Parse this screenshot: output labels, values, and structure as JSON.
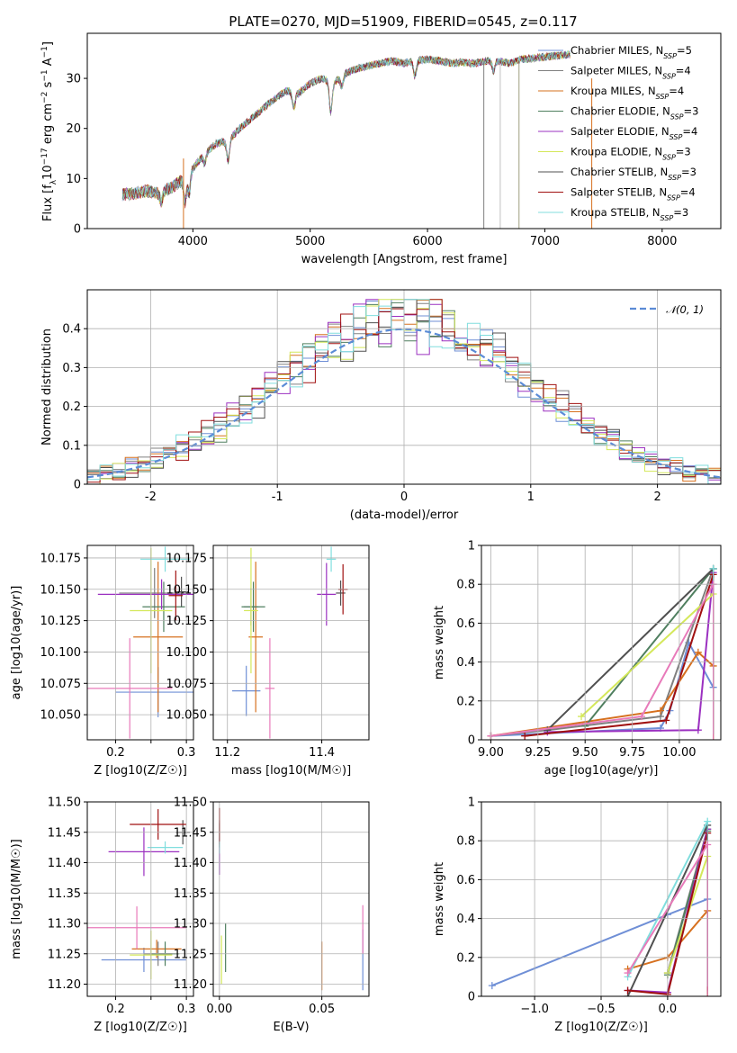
{
  "figure": {
    "title": "PLATE=0270, MJD=51909, FIBERID=0545, z=0.117",
    "colors": {
      "Chabrier MILES": "#6f8fd6",
      "Salpeter MILES": "#808080",
      "Kroupa MILES": "#d6701f",
      "Chabrier ELODIE": "#4f7f5f",
      "Salpeter ELODIE": "#9b30c0",
      "Kroupa ELODIE": "#d4e85a",
      "Chabrier STELIB": "#505050",
      "Salpeter STELIB": "#a01010",
      "Kroupa STELIB": "#80dede"
    }
  },
  "chart_data": [
    {
      "id": "spectrum",
      "type": "line",
      "xlabel": "wavelength [Angstrom, rest frame]",
      "ylabel": "Flux [fλ10⁻¹⁷ erg cm⁻² s⁻¹ A⁻¹]",
      "xlim": [
        3100,
        8500
      ],
      "ylim": [
        0,
        39
      ],
      "xticks": [
        4000,
        5000,
        6000,
        7000,
        8000
      ],
      "yticks": [
        0,
        10,
        20,
        30
      ],
      "grid": false,
      "legend_position": "right",
      "series": [
        {
          "name": "Chabrier MILES, N_SSP=5",
          "color": "#6f8fd6"
        },
        {
          "name": "Salpeter MILES, N_SSP=4",
          "color": "#808080"
        },
        {
          "name": "Kroupa MILES, N_SSP=4",
          "color": "#d6701f"
        },
        {
          "name": "Chabrier ELODIE, N_SSP=3",
          "color": "#4f7f5f"
        },
        {
          "name": "Salpeter ELODIE, N_SSP=4",
          "color": "#9b30c0"
        },
        {
          "name": "Kroupa ELODIE, N_SSP=3",
          "color": "#d4e85a"
        },
        {
          "name": "Chabrier STELIB, N_SSP=3",
          "color": "#505050"
        },
        {
          "name": "Salpeter STELIB, N_SSP=4",
          "color": "#a01010"
        },
        {
          "name": "Kroupa STELIB, N_SSP=3",
          "color": "#80dede"
        }
      ],
      "envelope": [
        [
          3400,
          6.8
        ],
        [
          3500,
          7.0
        ],
        [
          3600,
          7.5
        ],
        [
          3700,
          7.2
        ],
        [
          3800,
          8.0
        ],
        [
          3900,
          9.5
        ],
        [
          4000,
          12.0
        ],
        [
          4100,
          15.0
        ],
        [
          4200,
          17.0
        ],
        [
          4300,
          17.5
        ],
        [
          4400,
          20.0
        ],
        [
          4500,
          22.0
        ],
        [
          4600,
          24.0
        ],
        [
          4700,
          26.0
        ],
        [
          4800,
          27.5
        ],
        [
          4900,
          27.0
        ],
        [
          5000,
          29.0
        ],
        [
          5100,
          30.0
        ],
        [
          5200,
          29.0
        ],
        [
          5300,
          31.0
        ],
        [
          5400,
          32.0
        ],
        [
          5500,
          32.5
        ],
        [
          5600,
          33.0
        ],
        [
          5700,
          33.5
        ],
        [
          5800,
          33.0
        ],
        [
          5900,
          33.5
        ],
        [
          6000,
          33.8
        ],
        [
          6100,
          33.5
        ],
        [
          6200,
          33.0
        ],
        [
          6300,
          33.2
        ],
        [
          6400,
          33.0
        ],
        [
          6500,
          33.5
        ],
        [
          6600,
          33.5
        ],
        [
          6700,
          33.0
        ],
        [
          6800,
          33.8
        ],
        [
          6900,
          34.0
        ],
        [
          7000,
          34.3
        ],
        [
          7100,
          34.5
        ],
        [
          7200,
          34.8
        ]
      ],
      "lines": [
        {
          "x": 3920,
          "y0": 0,
          "y1": 14,
          "color": "#d6701f"
        },
        {
          "x": 6480,
          "y0": 0,
          "y1": 33,
          "color": "#808080"
        },
        {
          "x": 6620,
          "y0": 0,
          "y1": 33,
          "color": "#c0c0c0"
        },
        {
          "x": 6780,
          "y0": 0,
          "y1": 33,
          "color": "#a0a080"
        },
        {
          "x": 7400,
          "y0": 0,
          "y1": 30,
          "color": "#d6701f"
        }
      ]
    },
    {
      "id": "residuals",
      "type": "line",
      "xlabel": "(data-model)/error",
      "ylabel": "Normed distribution",
      "xlim": [
        -2.5,
        2.5
      ],
      "ylim": [
        0,
        0.5
      ],
      "xticks": [
        -2,
        -1,
        0,
        1,
        2
      ],
      "yticks": [
        0.0,
        0.1,
        0.2,
        0.3,
        0.4
      ],
      "grid": true,
      "legend_position": "top-right",
      "legend": "𝒩(0, 1)",
      "histogram_bin_width": 0.1,
      "series_colors": [
        "#6f8fd6",
        "#808080",
        "#d6701f",
        "#4f7f5f",
        "#9b30c0",
        "#d4e85a",
        "#505050",
        "#a01010",
        "#80dede"
      ]
    },
    {
      "id": "age_vs_Z",
      "type": "scatter",
      "xlabel": "Z [log10(Z/Z☉)]",
      "ylabel": "age [log10(age/yr)]",
      "xlim": [
        0.16,
        0.31
      ],
      "ylim": [
        10.03,
        10.185
      ],
      "xticks": [
        0.2,
        0.25,
        0.3
      ],
      "xticklabels": [
        "0.2",
        "",
        "0.3"
      ],
      "yticks": [
        10.05,
        10.075,
        10.1,
        10.125,
        10.15,
        10.175
      ],
      "yticklabels": [
        "10.050",
        "10.075",
        "10.100",
        "10.125",
        "10.150",
        "10.175"
      ],
      "grid": true,
      "points": [
        {
          "x": 0.26,
          "y": 10.068,
          "xerr": 0.06,
          "yerr": 0.02,
          "color": "#6f8fd6"
        },
        {
          "x": 0.255,
          "y": 10.147,
          "xerr": 0.05,
          "yerr": 0.02,
          "color": "#808080"
        },
        {
          "x": 0.26,
          "y": 10.112,
          "xerr": 0.035,
          "yerr": 0.06,
          "color": "#d6701f"
        },
        {
          "x": 0.268,
          "y": 10.136,
          "xerr": 0.03,
          "yerr": 0.02,
          "color": "#4f7f5f"
        },
        {
          "x": 0.265,
          "y": 10.146,
          "xerr": 0.09,
          "yerr": 0.012,
          "color": "#9b30c0"
        },
        {
          "x": 0.25,
          "y": 10.133,
          "xerr": 0.03,
          "yerr": 0.05,
          "color": "#d4e85a"
        },
        {
          "x": 0.293,
          "y": 10.148,
          "xerr": 0.01,
          "yerr": 0.012,
          "color": "#505050"
        },
        {
          "x": 0.285,
          "y": 10.145,
          "xerr": 0.01,
          "yerr": 0.02,
          "color": "#a01010"
        },
        {
          "x": 0.27,
          "y": 10.174,
          "xerr": 0.035,
          "yerr": 0.01,
          "color": "#80dede"
        },
        {
          "x": 0.22,
          "y": 10.071,
          "xerr": 0.06,
          "yerr": 0.04,
          "color": "#e87aba"
        }
      ]
    },
    {
      "id": "age_vs_mass",
      "type": "scatter",
      "xlabel": "mass [log10(M/M☉)]",
      "ylabel": "",
      "xlim": [
        11.17,
        11.5
      ],
      "ylim": [
        10.03,
        10.185
      ],
      "xticks": [
        11.2,
        11.4
      ],
      "yticks": [
        10.05,
        10.075,
        10.1,
        10.125,
        10.15,
        10.175
      ],
      "yticklabels": [
        "10.050",
        "10.075",
        "10.100",
        "10.125",
        "10.150",
        "10.175"
      ],
      "grid": true,
      "points": [
        {
          "x": 11.24,
          "y": 10.069,
          "xerr": 0.03,
          "yerr": 0.02,
          "color": "#6f8fd6"
        },
        {
          "x": 11.25,
          "y": 10.136,
          "xerr": 0.015,
          "yerr": 0.015,
          "color": "#808080"
        },
        {
          "x": 11.26,
          "y": 10.112,
          "xerr": 0.015,
          "yerr": 0.06,
          "color": "#d6701f"
        },
        {
          "x": 11.255,
          "y": 10.136,
          "xerr": 0.025,
          "yerr": 0.02,
          "color": "#4f7f5f"
        },
        {
          "x": 11.41,
          "y": 10.146,
          "xerr": 0.02,
          "yerr": 0.025,
          "color": "#9b30c0"
        },
        {
          "x": 11.25,
          "y": 10.133,
          "xerr": 0.015,
          "yerr": 0.05,
          "color": "#d4e85a"
        },
        {
          "x": 11.44,
          "y": 10.147,
          "xerr": 0.01,
          "yerr": 0.01,
          "color": "#505050"
        },
        {
          "x": 11.445,
          "y": 10.15,
          "xerr": 0.01,
          "yerr": 0.02,
          "color": "#a01010"
        },
        {
          "x": 11.42,
          "y": 10.174,
          "xerr": 0.01,
          "yerr": 0.01,
          "color": "#80dede"
        },
        {
          "x": 11.29,
          "y": 10.071,
          "xerr": 0.01,
          "yerr": 0.04,
          "color": "#e87aba"
        }
      ]
    },
    {
      "id": "mass_weight_vs_age",
      "type": "line",
      "xlabel": "age [log10(age/yr)]",
      "ylabel": "mass weight",
      "xlim": [
        8.95,
        10.22
      ],
      "ylim": [
        0,
        1.0
      ],
      "xticks": [
        9.0,
        9.25,
        9.5,
        9.75,
        10.0
      ],
      "xticklabels": [
        "9.00",
        "9.25",
        "9.50",
        "9.75",
        "10.00"
      ],
      "yticks": [
        0.0,
        0.2,
        0.4,
        0.6,
        0.8,
        1.0
      ],
      "grid": true,
      "series": [
        {
          "color": "#6f8fd6",
          "x": [
            9.0,
            9.9,
            9.95,
            10.05,
            10.18
          ],
          "y": [
            0.02,
            0.06,
            0.15,
            0.5,
            0.27
          ]
        },
        {
          "color": "#808080",
          "x": [
            9.0,
            9.3,
            9.9,
            10.18
          ],
          "y": [
            0.02,
            0.05,
            0.12,
            0.88
          ]
        },
        {
          "color": "#d6701f",
          "x": [
            9.0,
            9.9,
            10.1,
            10.18
          ],
          "y": [
            0.02,
            0.15,
            0.45,
            0.38
          ]
        },
        {
          "color": "#4f7f5f",
          "x": [
            9.5,
            10.18
          ],
          "y": [
            0.07,
            0.88
          ]
        },
        {
          "color": "#9b30c0",
          "x": [
            9.3,
            10.1,
            10.18
          ],
          "y": [
            0.04,
            0.05,
            0.86
          ]
        },
        {
          "color": "#d4e85a",
          "x": [
            9.48,
            10.18
          ],
          "y": [
            0.12,
            0.75
          ]
        },
        {
          "color": "#505050",
          "x": [
            9.3,
            10.18
          ],
          "y": [
            0.05,
            0.88
          ]
        },
        {
          "color": "#a01010",
          "x": [
            9.18,
            9.93,
            10.18
          ],
          "y": [
            0.02,
            0.1,
            0.85
          ]
        },
        {
          "color": "#80dede",
          "x": [
            10.18
          ],
          "y": [
            0.88
          ]
        },
        {
          "color": "#e87aba",
          "x": [
            9.0,
            9.8,
            10.18
          ],
          "y": [
            0.02,
            0.12,
            0.8
          ]
        }
      ]
    },
    {
      "id": "mass_vs_Z",
      "type": "scatter",
      "xlabel": "Z [log10(Z/Z☉)]",
      "ylabel": "mass [log10(M/M☉)]",
      "xlim": [
        0.16,
        0.31
      ],
      "ylim": [
        11.18,
        11.5
      ],
      "xticks": [
        0.2,
        0.25,
        0.3
      ],
      "xticklabels": [
        "0.2",
        "",
        "0.3"
      ],
      "yticks": [
        11.2,
        11.25,
        11.3,
        11.35,
        11.4,
        11.45,
        11.5
      ],
      "yticklabels": [
        "11.20",
        "11.25",
        "11.30",
        "11.35",
        "11.40",
        "11.45",
        "11.50"
      ],
      "grid": true,
      "points": [
        {
          "x": 0.24,
          "y": 11.24,
          "xerr": 0.06,
          "yerr": 0.02,
          "color": "#6f8fd6"
        },
        {
          "x": 0.26,
          "y": 11.25,
          "xerr": 0.02,
          "yerr": 0.02,
          "color": "#808080"
        },
        {
          "x": 0.258,
          "y": 11.258,
          "xerr": 0.035,
          "yerr": 0.015,
          "color": "#d6701f"
        },
        {
          "x": 0.27,
          "y": 11.25,
          "xerr": 0.02,
          "yerr": 0.02,
          "color": "#4f7f5f"
        },
        {
          "x": 0.24,
          "y": 11.418,
          "xerr": 0.05,
          "yerr": 0.04,
          "color": "#9b30c0"
        },
        {
          "x": 0.25,
          "y": 11.248,
          "xerr": 0.03,
          "yerr": 0.04,
          "color": "#d4e85a"
        },
        {
          "x": 0.295,
          "y": 11.45,
          "xerr": 0.01,
          "yerr": 0.02,
          "color": "#505050"
        },
        {
          "x": 0.26,
          "y": 11.463,
          "xerr": 0.04,
          "yerr": 0.025,
          "color": "#a01010"
        },
        {
          "x": 0.27,
          "y": 11.425,
          "xerr": 0.025,
          "yerr": 0.01,
          "color": "#80dede"
        },
        {
          "x": 0.23,
          "y": 11.293,
          "xerr": 0.07,
          "yerr": 0.035,
          "color": "#e87aba"
        }
      ]
    },
    {
      "id": "mass_vs_ebv",
      "type": "scatter",
      "xlabel": "E(B-V)",
      "ylabel": "",
      "xlim": [
        -0.003,
        0.073
      ],
      "ylim": [
        11.18,
        11.5
      ],
      "xticks": [
        0.0,
        0.05
      ],
      "xticklabels": [
        "0.00",
        "0.05"
      ],
      "yticks": [
        11.2,
        11.25,
        11.3,
        11.35,
        11.4,
        11.45,
        11.5
      ],
      "yticklabels": [
        "11.20",
        "11.25",
        "11.30",
        "11.35",
        "11.40",
        "11.45",
        "11.50"
      ],
      "grid": true,
      "points": [
        {
          "x": 0.07,
          "y": 11.24,
          "xerr": 0,
          "yerr": 0.05,
          "color": "#6f8fd6"
        },
        {
          "x": 0.0,
          "y": 11.45,
          "xerr": 0,
          "yerr": 0.02,
          "color": "#808080"
        },
        {
          "x": 0.05,
          "y": 11.23,
          "xerr": 0,
          "yerr": 0.04,
          "color": "#d6701f"
        },
        {
          "x": 0.003,
          "y": 11.26,
          "xerr": 0,
          "yerr": 0.04,
          "color": "#4f7f5f"
        },
        {
          "x": 0.0,
          "y": 11.41,
          "xerr": 0,
          "yerr": 0.03,
          "color": "#9b30c0"
        },
        {
          "x": 0.001,
          "y": 11.24,
          "xerr": 0,
          "yerr": 0.04,
          "color": "#d4e85a"
        },
        {
          "x": 0.0,
          "y": 11.445,
          "xerr": 0,
          "yerr": 0.02,
          "color": "#505050"
        },
        {
          "x": 0.0,
          "y": 11.46,
          "xerr": 0,
          "yerr": 0.03,
          "color": "#a01010"
        },
        {
          "x": 0.0,
          "y": 11.425,
          "xerr": 0,
          "yerr": 0.01,
          "color": "#80dede"
        },
        {
          "x": 0.07,
          "y": 11.29,
          "xerr": 0,
          "yerr": 0.04,
          "color": "#e87aba"
        }
      ]
    },
    {
      "id": "mass_weight_vs_Z",
      "type": "line",
      "xlabel": "Z [log10(Z/Z☉)]",
      "ylabel": "mass weight",
      "xlim": [
        -1.4,
        0.4
      ],
      "ylim": [
        0,
        1.0
      ],
      "xticks": [
        -1.0,
        -0.5,
        0.0
      ],
      "xticklabels": [
        "−1.0",
        "−0.5",
        "0.0"
      ],
      "yticks": [
        0.0,
        0.2,
        0.4,
        0.6,
        0.8,
        1.0
      ],
      "grid": true,
      "series": [
        {
          "color": "#6f8fd6",
          "x": [
            -1.32,
            0.0,
            0.3
          ],
          "y": [
            0.055,
            0.42,
            0.5
          ]
        },
        {
          "color": "#808080",
          "x": [
            0.0,
            0.3
          ],
          "y": [
            0.12,
            0.86
          ]
        },
        {
          "color": "#d6701f",
          "x": [
            -0.3,
            0.0,
            0.3
          ],
          "y": [
            0.14,
            0.2,
            0.44
          ]
        },
        {
          "color": "#4f7f5f",
          "x": [
            0.0,
            0.3
          ],
          "y": [
            0.11,
            0.85
          ]
        },
        {
          "color": "#9b30c0",
          "x": [
            -0.3,
            0.0,
            0.3
          ],
          "y": [
            0.03,
            0.02,
            0.86
          ]
        },
        {
          "color": "#d4e85a",
          "x": [
            0.0,
            0.3
          ],
          "y": [
            0.12,
            0.72
          ]
        },
        {
          "color": "#505050",
          "x": [
            -0.3,
            0.3
          ],
          "y": [
            0.0,
            0.88
          ]
        },
        {
          "color": "#a01010",
          "x": [
            -0.3,
            0.0,
            0.3
          ],
          "y": [
            0.03,
            0.01,
            0.84
          ]
        },
        {
          "color": "#80dede",
          "x": [
            -0.3,
            0.3
          ],
          "y": [
            0.1,
            0.9
          ]
        },
        {
          "color": "#e87aba",
          "x": [
            -0.3,
            0.3
          ],
          "y": [
            0.12,
            0.78
          ]
        }
      ]
    }
  ]
}
